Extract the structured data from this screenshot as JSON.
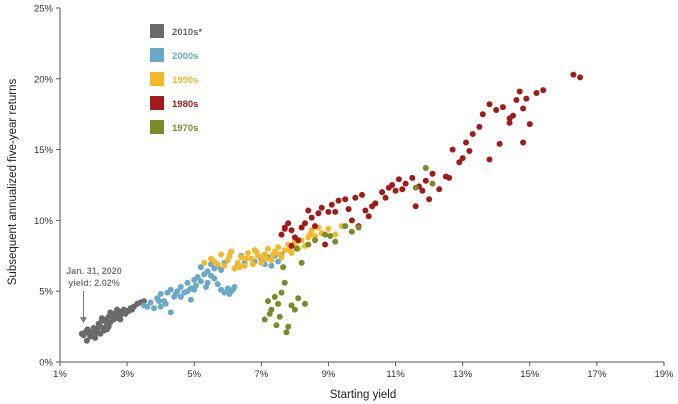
{
  "chart_data": {
    "type": "scatter",
    "xlabel": "Starting yield",
    "ylabel": "Subsequent annualized five-year returns",
    "xlim": [
      1,
      19
    ],
    "ylim": [
      0,
      25
    ],
    "x_ticks": [
      "1%",
      "3%",
      "5%",
      "7%",
      "9%",
      "11%",
      "13%",
      "15%",
      "17%",
      "19%"
    ],
    "y_ticks": [
      "0%",
      "5%",
      "10%",
      "15%",
      "20%",
      "25%"
    ],
    "grid": false,
    "legend_position": "top-left",
    "annotation": {
      "line1": "Jan. 31, 2020",
      "line2": "yield: 2.02%",
      "point": [
        1.7,
        2.6
      ]
    },
    "series": [
      {
        "name": "2010s*",
        "color": "#6a6a6a",
        "points": [
          [
            1.65,
            2.0
          ],
          [
            1.7,
            1.9
          ],
          [
            1.75,
            2.1
          ],
          [
            1.8,
            1.5
          ],
          [
            1.82,
            2.3
          ],
          [
            1.9,
            1.8
          ],
          [
            1.95,
            2.1
          ],
          [
            2.0,
            2.4
          ],
          [
            2.05,
            2.0
          ],
          [
            2.1,
            2.2
          ],
          [
            2.15,
            2.7
          ],
          [
            2.2,
            2.5
          ],
          [
            2.25,
            2.9
          ],
          [
            2.3,
            2.4
          ],
          [
            2.35,
            3.0
          ],
          [
            2.4,
            2.6
          ],
          [
            2.45,
            3.2
          ],
          [
            2.5,
            2.8
          ],
          [
            2.55,
            3.3
          ],
          [
            2.6,
            3.0
          ],
          [
            2.65,
            3.4
          ],
          [
            2.7,
            3.1
          ],
          [
            2.75,
            3.6
          ],
          [
            2.8,
            3.3
          ],
          [
            2.85,
            3.5
          ],
          [
            2.9,
            3.7
          ],
          [
            2.95,
            3.4
          ],
          [
            3.0,
            3.6
          ],
          [
            3.1,
            3.8
          ],
          [
            3.2,
            3.9
          ],
          [
            3.3,
            4.1
          ],
          [
            3.4,
            4.2
          ],
          [
            3.5,
            4.3
          ],
          [
            2.2,
            2.0
          ],
          [
            2.3,
            2.2
          ],
          [
            2.0,
            2.1
          ],
          [
            1.95,
            1.8
          ],
          [
            2.25,
            3.1
          ],
          [
            2.6,
            3.4
          ],
          [
            2.8,
            3.0
          ],
          [
            2.4,
            2.3
          ],
          [
            2.15,
            2.5
          ],
          [
            1.88,
            2.0
          ],
          [
            2.35,
            2.9
          ],
          [
            2.7,
            3.7
          ],
          [
            3.05,
            3.6
          ],
          [
            2.05,
            1.7
          ],
          [
            2.5,
            3.5
          ],
          [
            3.15,
            3.7
          ],
          [
            2.45,
            2.5
          ]
        ]
      },
      {
        "name": "2000s",
        "color": "#6aaac9",
        "points": [
          [
            3.5,
            4.0
          ],
          [
            3.7,
            4.2
          ],
          [
            3.9,
            4.5
          ],
          [
            4.0,
            4.8
          ],
          [
            4.1,
            4.3
          ],
          [
            4.2,
            4.9
          ],
          [
            4.3,
            5.1
          ],
          [
            4.4,
            4.6
          ],
          [
            4.5,
            5.0
          ],
          [
            4.6,
            5.3
          ],
          [
            4.7,
            4.9
          ],
          [
            4.8,
            5.6
          ],
          [
            4.9,
            5.2
          ],
          [
            5.0,
            5.8
          ],
          [
            5.1,
            6.0
          ],
          [
            5.2,
            5.7
          ],
          [
            5.3,
            6.2
          ],
          [
            5.4,
            6.4
          ],
          [
            5.5,
            6.1
          ],
          [
            5.6,
            6.6
          ],
          [
            5.7,
            6.8
          ],
          [
            5.8,
            6.5
          ],
          [
            5.9,
            7.0
          ],
          [
            6.0,
            5.2
          ],
          [
            6.1,
            5.0
          ],
          [
            6.2,
            5.3
          ],
          [
            5.8,
            5.1
          ],
          [
            5.9,
            4.9
          ],
          [
            6.05,
            4.8
          ],
          [
            6.3,
            6.9
          ],
          [
            6.5,
            7.0
          ],
          [
            6.8,
            7.1
          ],
          [
            7.0,
            7.2
          ],
          [
            7.2,
            7.4
          ],
          [
            7.4,
            7.5
          ],
          [
            7.6,
            7.6
          ],
          [
            4.0,
            3.9
          ],
          [
            4.3,
            3.5
          ],
          [
            3.8,
            3.8
          ],
          [
            4.6,
            4.6
          ],
          [
            5.0,
            5.1
          ],
          [
            5.4,
            5.6
          ],
          [
            5.6,
            5.9
          ],
          [
            5.2,
            6.7
          ],
          [
            5.5,
            6.9
          ],
          [
            4.8,
            5.0
          ],
          [
            4.9,
            4.4
          ],
          [
            5.7,
            5.5
          ],
          [
            6.4,
            7.5
          ],
          [
            7.5,
            7.1
          ],
          [
            3.6,
            3.9
          ],
          [
            4.45,
            4.8
          ],
          [
            5.05,
            5.4
          ],
          [
            5.35,
            5.3
          ],
          [
            6.15,
            5.1
          ],
          [
            7.1,
            6.9
          ],
          [
            7.3,
            6.8
          ],
          [
            4.15,
            4.1
          ],
          [
            3.95,
            4.3
          ]
        ]
      },
      {
        "name": "1990s",
        "color": "#f5b829",
        "points": [
          [
            5.3,
            7.0
          ],
          [
            5.5,
            7.3
          ],
          [
            5.7,
            6.9
          ],
          [
            5.8,
            7.6
          ],
          [
            6.0,
            7.2
          ],
          [
            6.1,
            7.8
          ],
          [
            6.2,
            6.6
          ],
          [
            6.3,
            7.0
          ],
          [
            6.4,
            7.4
          ],
          [
            6.5,
            6.8
          ],
          [
            6.6,
            7.7
          ],
          [
            6.7,
            7.3
          ],
          [
            6.8,
            7.9
          ],
          [
            6.9,
            7.5
          ],
          [
            7.0,
            7.0
          ],
          [
            7.1,
            7.6
          ],
          [
            7.2,
            8.0
          ],
          [
            7.3,
            7.2
          ],
          [
            7.4,
            7.8
          ],
          [
            7.5,
            8.1
          ],
          [
            7.6,
            7.4
          ],
          [
            7.7,
            7.9
          ],
          [
            7.8,
            8.3
          ],
          [
            7.9,
            7.7
          ],
          [
            8.0,
            8.5
          ],
          [
            8.1,
            8.0
          ],
          [
            8.2,
            8.6
          ],
          [
            8.3,
            8.2
          ],
          [
            8.4,
            8.8
          ],
          [
            8.5,
            9.3
          ],
          [
            8.6,
            8.9
          ],
          [
            8.7,
            9.5
          ],
          [
            8.8,
            9.1
          ],
          [
            9.0,
            9.4
          ],
          [
            9.2,
            9.0
          ],
          [
            9.4,
            9.6
          ],
          [
            5.9,
            6.8
          ],
          [
            6.05,
            7.5
          ],
          [
            6.55,
            7.3
          ],
          [
            6.75,
            6.9
          ],
          [
            7.05,
            7.4
          ],
          [
            7.35,
            7.6
          ],
          [
            6.35,
            6.7
          ],
          [
            5.6,
            7.1
          ],
          [
            6.85,
            7.8
          ],
          [
            7.15,
            7.3
          ],
          [
            7.55,
            7.6
          ],
          [
            7.85,
            7.9
          ],
          [
            8.45,
            9.0
          ],
          [
            8.05,
            8.1
          ]
        ]
      },
      {
        "name": "1980s",
        "color": "#a31a1a",
        "points": [
          [
            7.6,
            9.0
          ],
          [
            7.7,
            9.5
          ],
          [
            7.8,
            9.8
          ],
          [
            7.9,
            9.3
          ],
          [
            8.0,
            8.8
          ],
          [
            8.1,
            8.6
          ],
          [
            8.3,
            9.8
          ],
          [
            8.5,
            10.2
          ],
          [
            8.6,
            9.6
          ],
          [
            8.7,
            10.5
          ],
          [
            8.8,
            10.9
          ],
          [
            9.0,
            10.6
          ],
          [
            9.1,
            11.1
          ],
          [
            9.3,
            11.4
          ],
          [
            9.5,
            11.5
          ],
          [
            9.6,
            10.8
          ],
          [
            9.8,
            11.6
          ],
          [
            10.0,
            11.8
          ],
          [
            10.1,
            10.7
          ],
          [
            10.2,
            10.3
          ],
          [
            10.4,
            11.2
          ],
          [
            10.6,
            12.0
          ],
          [
            10.8,
            12.3
          ],
          [
            11.0,
            12.1
          ],
          [
            11.1,
            12.9
          ],
          [
            11.3,
            12.6
          ],
          [
            11.5,
            13.0
          ],
          [
            11.7,
            12.4
          ],
          [
            11.9,
            12.8
          ],
          [
            12.1,
            13.3
          ],
          [
            12.3,
            12.2
          ],
          [
            12.5,
            13.1
          ],
          [
            12.7,
            15.0
          ],
          [
            12.9,
            14.1
          ],
          [
            13.1,
            15.5
          ],
          [
            13.3,
            16.1
          ],
          [
            13.5,
            16.6
          ],
          [
            13.6,
            17.5
          ],
          [
            13.8,
            18.2
          ],
          [
            14.0,
            17.8
          ],
          [
            14.2,
            18.0
          ],
          [
            14.4,
            17.2
          ],
          [
            14.6,
            18.5
          ],
          [
            14.8,
            17.9
          ],
          [
            15.0,
            16.8
          ],
          [
            15.2,
            19.0
          ],
          [
            15.4,
            19.2
          ],
          [
            16.3,
            20.3
          ],
          [
            16.5,
            20.1
          ],
          [
            13.0,
            14.4
          ],
          [
            13.8,
            14.3
          ],
          [
            14.1,
            15.4
          ],
          [
            14.4,
            16.9
          ],
          [
            14.7,
            19.1
          ],
          [
            14.9,
            18.6
          ],
          [
            12.0,
            11.5
          ],
          [
            11.6,
            11.0
          ],
          [
            11.2,
            12.2
          ],
          [
            10.9,
            12.5
          ],
          [
            10.3,
            11.0
          ],
          [
            9.9,
            9.6
          ],
          [
            9.2,
            10.6
          ],
          [
            8.2,
            9.5
          ],
          [
            7.9,
            8.2
          ],
          [
            8.9,
            8.3
          ],
          [
            9.7,
            10.0
          ],
          [
            10.7,
            11.6
          ],
          [
            11.8,
            12.1
          ],
          [
            12.6,
            13.0
          ],
          [
            13.2,
            14.9
          ],
          [
            14.5,
            17.4
          ],
          [
            14.8,
            15.5
          ],
          [
            7.7,
            9.4
          ],
          [
            8.4,
            10.7
          ]
        ]
      },
      {
        "name": "1970s",
        "color": "#7b8b2a",
        "points": [
          [
            7.1,
            3.0
          ],
          [
            7.2,
            4.3
          ],
          [
            7.3,
            3.7
          ],
          [
            7.4,
            4.6
          ],
          [
            7.5,
            4.1
          ],
          [
            7.45,
            2.6
          ],
          [
            7.55,
            3.2
          ],
          [
            7.6,
            4.9
          ],
          [
            7.7,
            5.6
          ],
          [
            7.75,
            2.1
          ],
          [
            7.8,
            2.5
          ],
          [
            7.9,
            4.0
          ],
          [
            8.0,
            3.7
          ],
          [
            8.1,
            4.5
          ],
          [
            8.3,
            4.1
          ],
          [
            8.2,
            7.0
          ],
          [
            8.4,
            8.3
          ],
          [
            8.6,
            8.6
          ],
          [
            8.9,
            9.0
          ],
          [
            9.2,
            8.5
          ],
          [
            9.5,
            9.6
          ],
          [
            9.7,
            9.2
          ],
          [
            9.9,
            9.5
          ],
          [
            11.9,
            13.7
          ],
          [
            12.1,
            12.6
          ],
          [
            11.6,
            12.3
          ],
          [
            7.25,
            3.4
          ],
          [
            7.65,
            6.7
          ],
          [
            8.05,
            8.0
          ],
          [
            9.05,
            8.9
          ]
        ]
      }
    ]
  }
}
